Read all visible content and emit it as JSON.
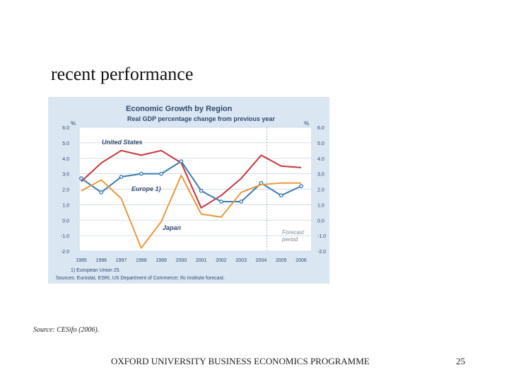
{
  "slide": {
    "title": "recent performance",
    "source": "Source: CESifo (2006).",
    "footer": "OXFORD UNIVERSITY BUSINESS ECONOMICS PROGRAMME",
    "page_number": "25"
  },
  "chart_data": {
    "type": "line",
    "title": "Economic Growth by Region",
    "subtitle": "Real GDP percentage change from previous year",
    "unit_left": "%",
    "unit_right": "%",
    "ylim": [
      -2.0,
      6.0
    ],
    "yticks": [
      "6.0",
      "5.0",
      "4.0",
      "3.0",
      "2.0",
      "1.0",
      "0.0",
      "-1.0",
      "-2.0"
    ],
    "x": [
      "1995",
      "1996",
      "1997",
      "1998",
      "1999",
      "2000",
      "2001",
      "2002",
      "2003",
      "2004",
      "2005",
      "2006"
    ],
    "series": [
      {
        "name": "United States",
        "color": "#c8343c",
        "values": [
          2.5,
          3.7,
          4.5,
          4.2,
          4.5,
          3.7,
          0.8,
          1.6,
          2.7,
          4.2,
          3.5,
          3.4
        ]
      },
      {
        "name": "Europe 1)",
        "color": "#3a7bb0",
        "markers": true,
        "values": [
          2.7,
          1.8,
          2.8,
          3.0,
          3.0,
          3.8,
          1.9,
          1.2,
          1.2,
          2.4,
          1.6,
          2.2
        ]
      },
      {
        "name": "Japan",
        "color": "#e89a3c",
        "values": [
          1.9,
          2.6,
          1.4,
          -1.8,
          -0.1,
          2.9,
          0.4,
          0.2,
          1.8,
          2.3,
          2.4,
          2.4
        ]
      }
    ],
    "annotation": {
      "line1": "Forecast",
      "line2": "period",
      "starts_after": "2004"
    },
    "footnote": "1) European Union 25.",
    "sources": "Sources: Eurostat, ESRI, US Department of Commerce; Ifo Institute forecast."
  }
}
